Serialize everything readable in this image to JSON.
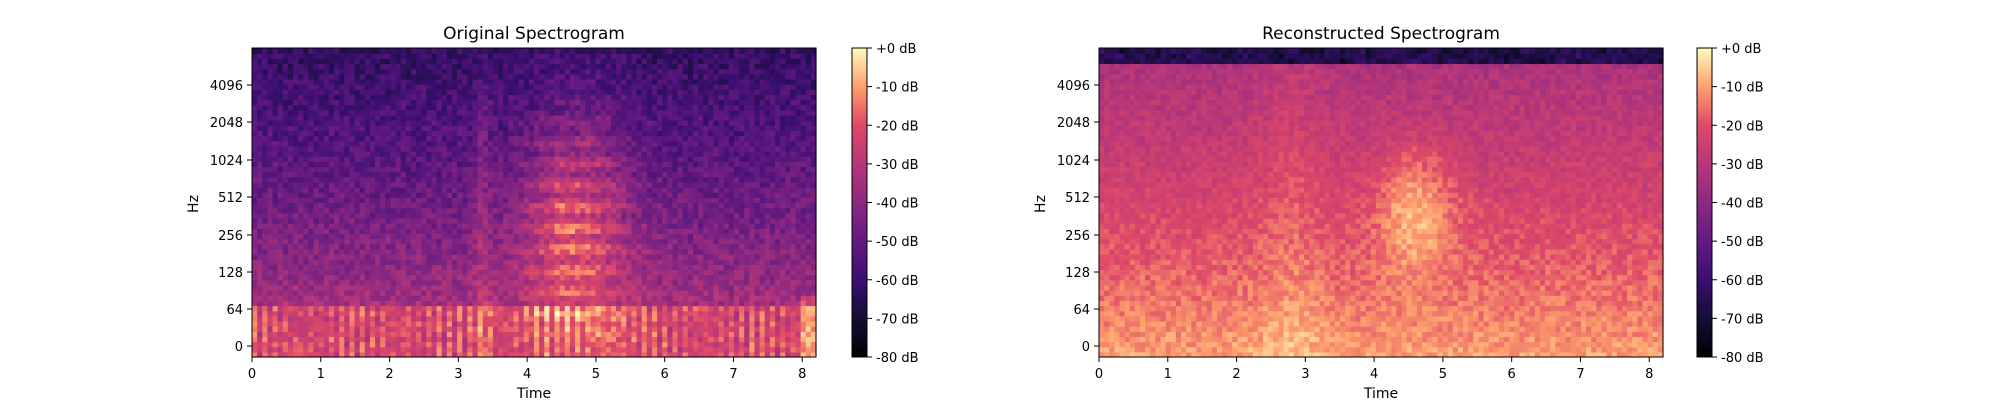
{
  "chart_data": [
    {
      "type": "heatmap",
      "title": "Original Spectrogram",
      "xlabel": "Time",
      "ylabel": "Hz",
      "x_ticks": [
        "0",
        "1",
        "2",
        "3",
        "4",
        "5",
        "6",
        "7",
        "8"
      ],
      "y_ticks": [
        "0",
        "64",
        "128",
        "256",
        "512",
        "1024",
        "2048",
        "4096"
      ],
      "xlim": [
        0,
        8.2
      ],
      "colormap": "magma",
      "colorbar": {
        "ticks": [
          "+0 dB",
          "-10 dB",
          "-20 dB",
          "-30 dB",
          "-40 dB",
          "-50 dB",
          "-60 dB",
          "-70 dB",
          "-80 dB"
        ],
        "range_db": [
          -80,
          0
        ]
      }
    },
    {
      "type": "heatmap",
      "title": "Reconstructed Spectrogram",
      "xlabel": "Time",
      "ylabel": "Hz",
      "x_ticks": [
        "0",
        "1",
        "2",
        "3",
        "4",
        "5",
        "6",
        "7",
        "8"
      ],
      "y_ticks": [
        "0",
        "64",
        "128",
        "256",
        "512",
        "1024",
        "2048",
        "4096"
      ],
      "xlim": [
        0,
        8.2
      ],
      "colormap": "magma",
      "colorbar": {
        "ticks": [
          "+0 dB",
          "-10 dB",
          "-20 dB",
          "-30 dB",
          "-40 dB",
          "-50 dB",
          "-60 dB",
          "-70 dB",
          "-80 dB"
        ],
        "range_db": [
          -80,
          0
        ]
      }
    }
  ]
}
